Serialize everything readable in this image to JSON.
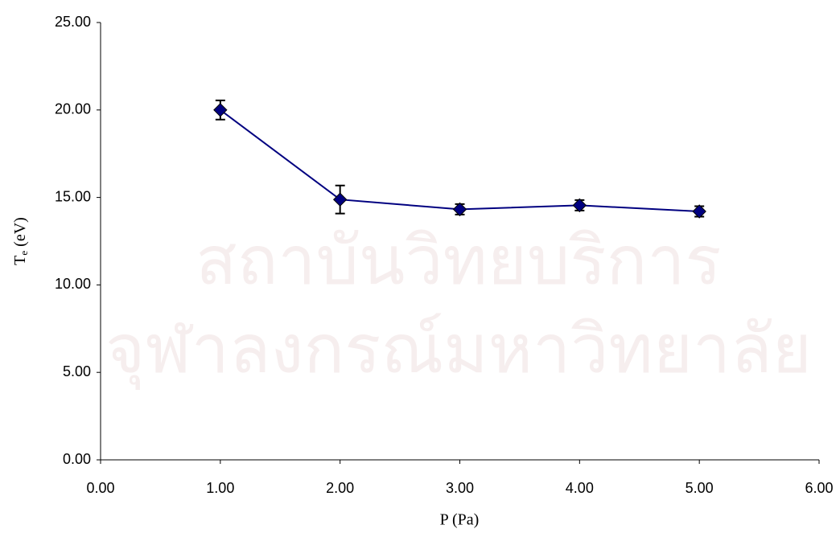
{
  "chart_data": {
    "type": "line",
    "x_label": "P (Pa)",
    "y_label_parts": [
      "T",
      "e",
      " (eV)"
    ],
    "watermark": [
      "สถาบันวิทยบริการ",
      "จุฬาลงกรณ์มหาวิทยาลัย"
    ],
    "x": [
      1,
      2,
      3,
      4,
      5
    ],
    "series": [
      {
        "color": "#000080",
        "values": [
          20.0,
          14.88,
          14.32,
          14.55,
          14.2
        ],
        "errors": [
          0.55,
          0.8,
          0.3,
          0.3,
          0.3
        ]
      }
    ],
    "xlim": [
      0,
      6
    ],
    "ylim": [
      0,
      25
    ],
    "xticks": [
      {
        "value": 0,
        "label": "0.00"
      },
      {
        "value": 1,
        "label": "1.00"
      },
      {
        "value": 2,
        "label": "2.00"
      },
      {
        "value": 3,
        "label": "3.00"
      },
      {
        "value": 4,
        "label": "4.00"
      },
      {
        "value": 5,
        "label": "5.00"
      },
      {
        "value": 6,
        "label": "6.00"
      }
    ],
    "yticks": [
      {
        "value": 0,
        "label": "0.00"
      },
      {
        "value": 5,
        "label": "5.00"
      },
      {
        "value": 10,
        "label": "10.00"
      },
      {
        "value": 15,
        "label": "15.00"
      },
      {
        "value": 20,
        "label": "20.00"
      },
      {
        "value": 25,
        "label": "25.00"
      }
    ],
    "grid": false
  }
}
